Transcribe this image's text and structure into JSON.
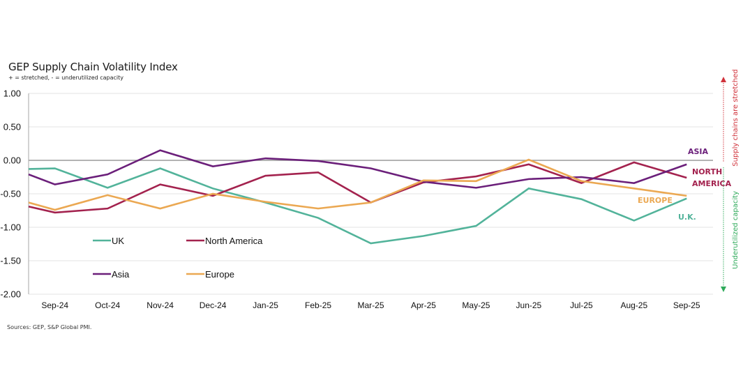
{
  "chart_data": {
    "type": "line",
    "title": "GEP Supply Chain Volatility Index",
    "subtitle": "+ = stretched, - = underutilized capacity",
    "source": "Sources: GEP, S&P Global PMI.",
    "xlabel": "",
    "ylabel": "",
    "ylim": [
      -2.0,
      1.0
    ],
    "yticks": [
      "1.00",
      "0.50",
      "0.00",
      "-0.50",
      "-1.00",
      "-1.50",
      "-2.00"
    ],
    "ytick_values": [
      1.0,
      0.5,
      0.0,
      -0.5,
      -1.0,
      -1.5,
      -2.0
    ],
    "grid": true,
    "categories": [
      "Sep-24",
      "Oct-24",
      "Nov-24",
      "Dec-24",
      "Jan-25",
      "Feb-25",
      "Mar-25",
      "Apr-25",
      "May-25",
      "Jun-25",
      "Jul-25",
      "Aug-25",
      "Sep-25"
    ],
    "legend_position": "bottom-left inside plot",
    "series": [
      {
        "name": "UK",
        "end_label": "U.K.",
        "color": "#52B39A",
        "lead_in": -0.13,
        "values": [
          -0.12,
          -0.41,
          -0.12,
          -0.42,
          -0.63,
          -0.86,
          -1.24,
          -1.13,
          -0.98,
          -0.42,
          -0.58,
          -0.9,
          -0.57
        ]
      },
      {
        "name": "North America",
        "end_label_lines": [
          "NORTH",
          "AMERICA"
        ],
        "color": "#A3224E",
        "lead_in": -0.69,
        "values": [
          -0.78,
          -0.72,
          -0.36,
          -0.53,
          -0.23,
          -0.18,
          -0.63,
          -0.33,
          -0.24,
          -0.06,
          -0.34,
          -0.03,
          -0.26
        ]
      },
      {
        "name": "Asia",
        "end_label": "ASIA",
        "color": "#6B1F7A",
        "lead_in": -0.21,
        "values": [
          -0.36,
          -0.21,
          0.15,
          -0.09,
          0.03,
          -0.01,
          -0.12,
          -0.32,
          -0.41,
          -0.28,
          -0.25,
          -0.34,
          -0.06
        ]
      },
      {
        "name": "Europe",
        "end_label": "EUROPE",
        "color": "#EBA852",
        "lead_in": -0.63,
        "values": [
          -0.74,
          -0.52,
          -0.72,
          -0.5,
          -0.62,
          -0.72,
          -0.63,
          -0.3,
          -0.31,
          0.01,
          -0.31,
          -0.42,
          -0.53
        ]
      }
    ],
    "annotations": {
      "up": {
        "text": "Supply chains are stretched",
        "color": "#D0313A"
      },
      "down": {
        "text": "Underutilized capacity",
        "color": "#2EAA5A"
      }
    }
  }
}
